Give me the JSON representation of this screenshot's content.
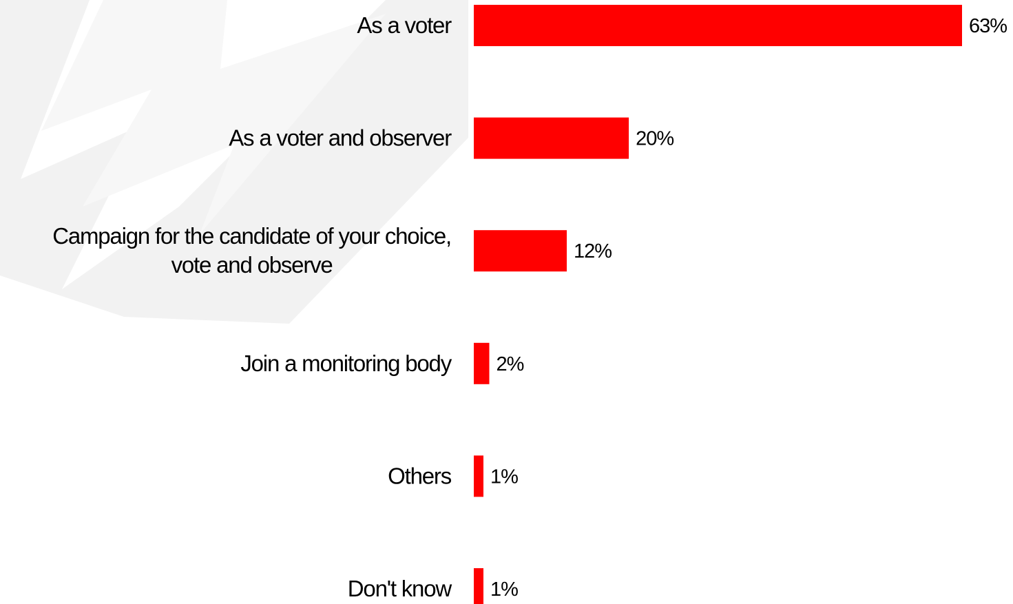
{
  "chart_data": {
    "type": "bar",
    "orientation": "horizontal",
    "categories": [
      [
        "As a voter"
      ],
      [
        "As a voter and observer"
      ],
      [
        "Campaign for the candidate of your choice,",
        "vote and observe"
      ],
      [
        "Join a monitoring body"
      ],
      [
        "Others"
      ],
      [
        "Don't know"
      ]
    ],
    "values": [
      63,
      20,
      12,
      2,
      1,
      1
    ],
    "value_labels": [
      "63%",
      "20%",
      "12%",
      "2%",
      "1%",
      "1%"
    ],
    "bar_color": "#ff0000",
    "background_watermark_color": "#f2f2f2",
    "axis_range": [
      0,
      63
    ],
    "grid": false,
    "legend": "none"
  }
}
